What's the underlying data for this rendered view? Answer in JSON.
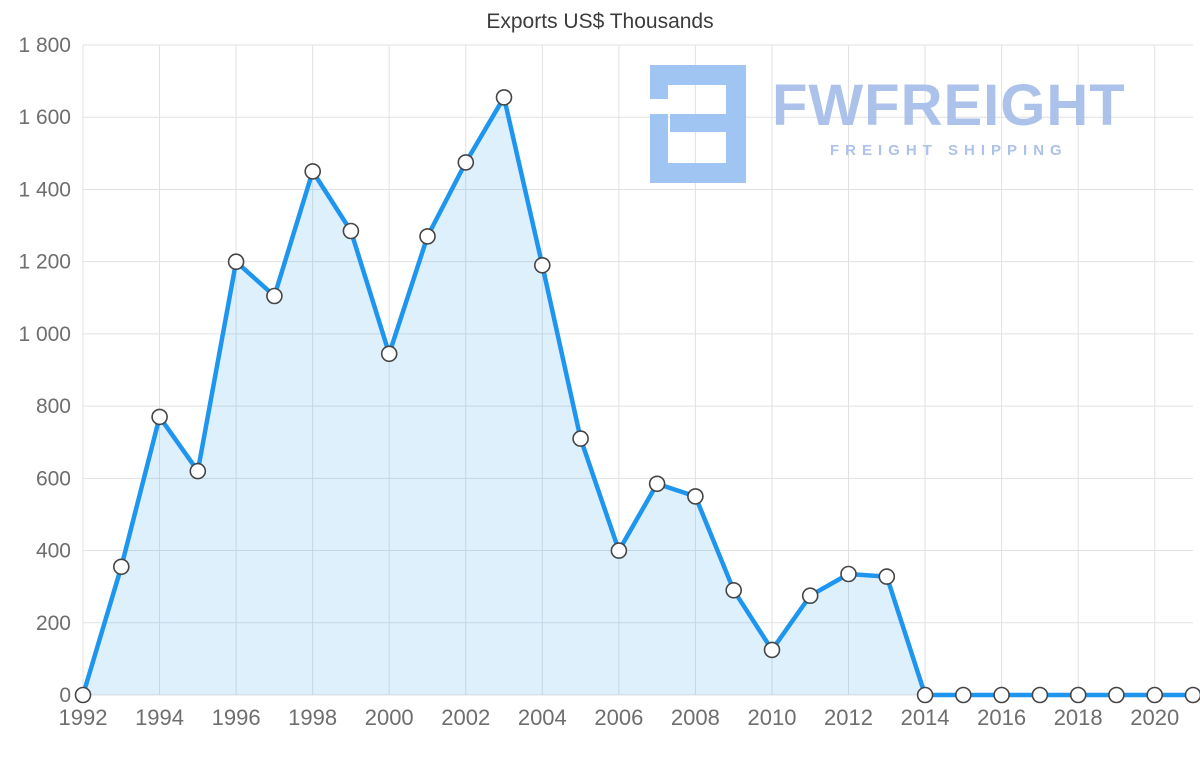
{
  "chart_data": {
    "type": "area",
    "title": "Exports US$ Thousands",
    "xlabel": "",
    "ylabel": "",
    "grid": true,
    "legend": false,
    "ylim": [
      0,
      1800
    ],
    "xlim": [
      1992,
      2021
    ],
    "x": [
      1992,
      1993,
      1994,
      1995,
      1996,
      1997,
      1998,
      1999,
      2000,
      2001,
      2002,
      2003,
      2004,
      2005,
      2006,
      2007,
      2008,
      2009,
      2010,
      2011,
      2012,
      2013,
      2014,
      2015,
      2016,
      2017,
      2018,
      2019,
      2020,
      2021
    ],
    "values": [
      0,
      355,
      770,
      620,
      1200,
      1105,
      1450,
      1285,
      945,
      1270,
      1475,
      1655,
      1190,
      710,
      400,
      585,
      550,
      290,
      125,
      275,
      335,
      328,
      0,
      0,
      0,
      0,
      0,
      0,
      0,
      0
    ],
    "x_ticks": [
      1992,
      1994,
      1996,
      1998,
      2000,
      2002,
      2004,
      2006,
      2008,
      2010,
      2012,
      2014,
      2016,
      2018,
      2020
    ],
    "y_ticks": [
      0,
      200,
      400,
      600,
      800,
      1000,
      1200,
      1400,
      1600,
      1800
    ],
    "y_tick_labels": [
      "0",
      "200",
      "400",
      "600",
      "800",
      "1 000",
      "1 200",
      "1 400",
      "1 600",
      "1 800"
    ],
    "series_name": "Exports US$ Thousands",
    "colors": {
      "line": "#1e96f0",
      "area": "rgba(30,150,240,0.14)",
      "grid": "#e1e1e1",
      "tick_text": "#6e6e6e",
      "title_text": "#3c3c3c",
      "marker_fill": "#ffffff",
      "marker_stroke": "#454545"
    }
  },
  "watermark": {
    "brand": "FWFREIGHT",
    "tagline": "FREIGHT SHIPPING",
    "color": "#a8bfe9",
    "icon_color": "#9cc2f3",
    "icon": "fwfreight-logo-icon"
  }
}
